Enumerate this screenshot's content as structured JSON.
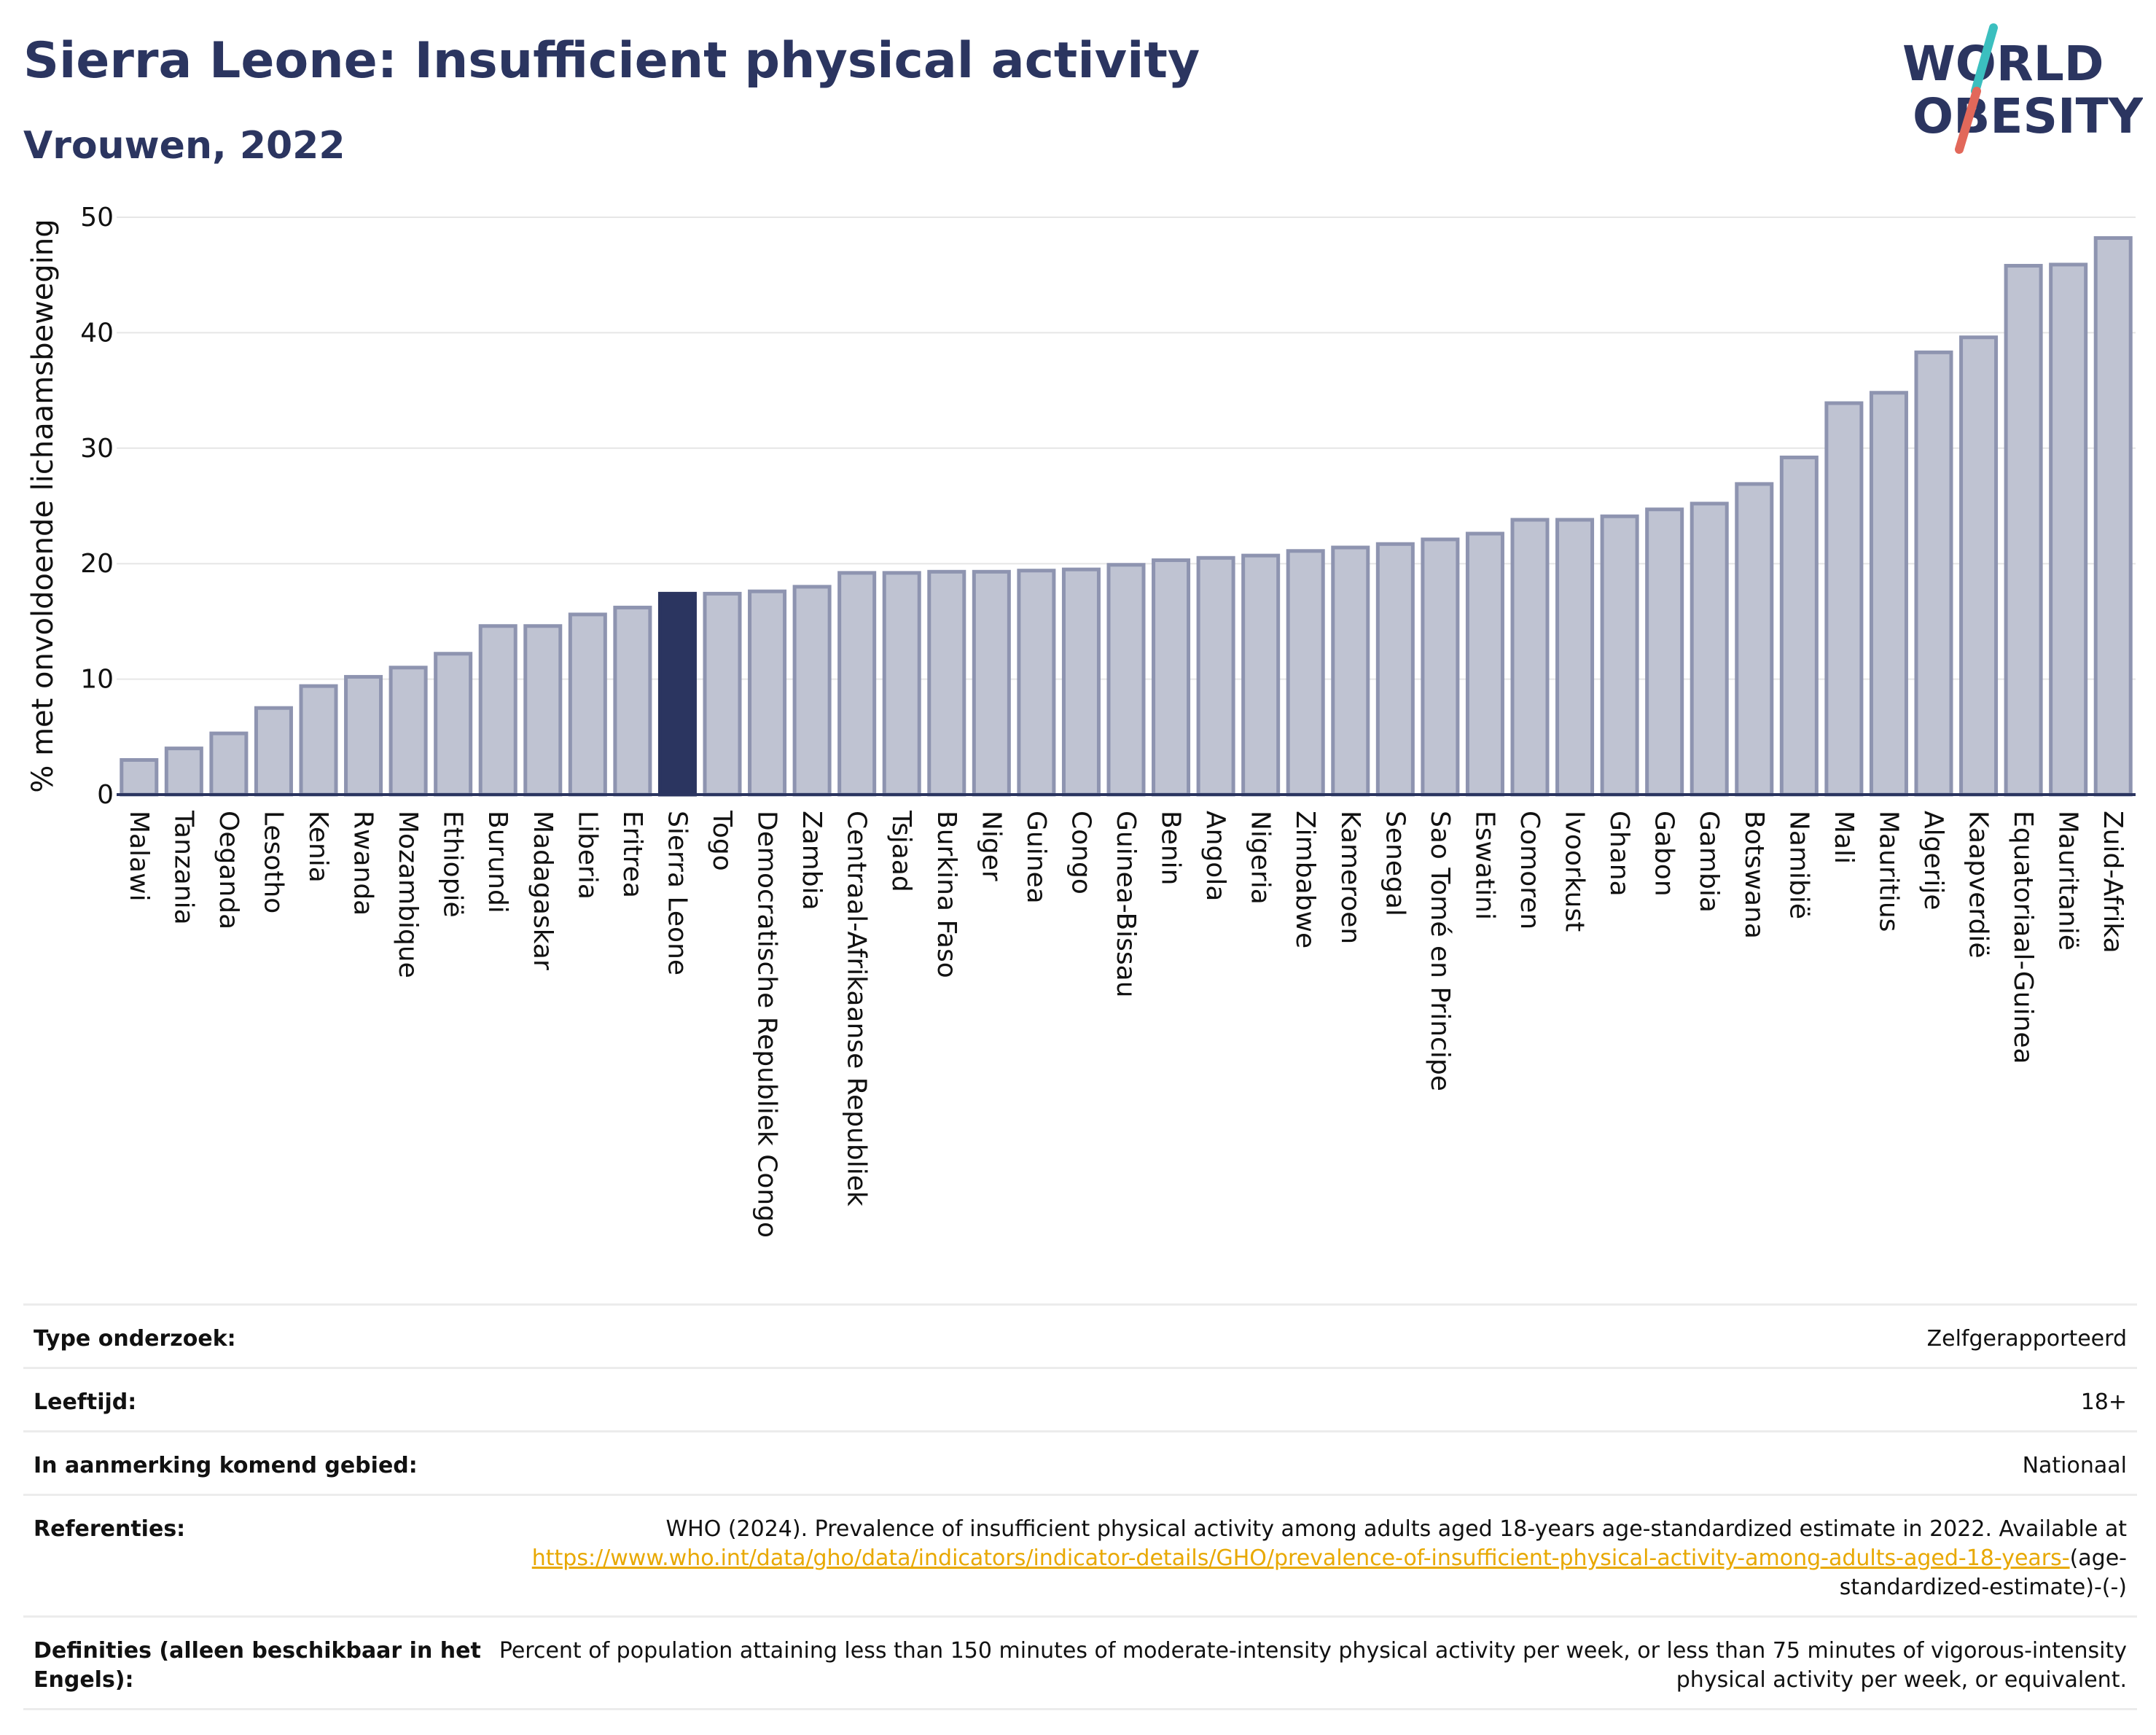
{
  "header": {
    "title": "Sierra Leone: Insufficient physical activity",
    "subtitle": "Vrouwen, 2022"
  },
  "logo": {
    "line1": "WORLD",
    "line2": "OBESITY",
    "colors": {
      "text": "#2b3560",
      "slash_teal": "#3bbfbf",
      "slash_red": "#e2685a"
    }
  },
  "chart_data": {
    "type": "bar",
    "title": "",
    "xlabel": "",
    "ylabel": "% met onvoldoende lichaamsbeweging",
    "ylim": [
      0,
      50
    ],
    "yticks": [
      0,
      10,
      20,
      30,
      40,
      50
    ],
    "grid": true,
    "highlight": "Sierra Leone",
    "colors": {
      "bar": "#bfc3d2",
      "bar_border": "#8e94b0",
      "highlight": "#2b3560",
      "grid": "#e6e6e6",
      "baseline": "#2b3560"
    },
    "categories": [
      "Malawi",
      "Tanzania",
      "Oeganda",
      "Lesotho",
      "Kenia",
      "Rwanda",
      "Mozambique",
      "Ethiopië",
      "Burundi",
      "Madagaskar",
      "Liberia",
      "Eritrea",
      "Sierra Leone",
      "Togo",
      "Democratische Republiek Congo",
      "Zambia",
      "Centraal-Afrikaanse Republiek",
      "Tsjaad",
      "Burkina Faso",
      "Niger",
      "Guinea",
      "Congo",
      "Guinea-Bissau",
      "Benin",
      "Angola",
      "Nigeria",
      "Zimbabwe",
      "Kameroen",
      "Senegal",
      "Sao Tomé en Principe",
      "Eswatini",
      "Comoren",
      "Ivoorkust",
      "Ghana",
      "Gabon",
      "Gambia",
      "Botswana",
      "Namibië",
      "Mali",
      "Mauritius",
      "Algerije",
      "Kaapverdië",
      "Equatoriaal-Guinea",
      "Mauritanië",
      "Zuid-Afrika"
    ],
    "values": [
      3.0,
      4.0,
      5.3,
      7.5,
      9.4,
      10.2,
      11.0,
      12.2,
      14.6,
      14.6,
      15.6,
      16.2,
      17.4,
      17.4,
      17.6,
      18.0,
      19.2,
      19.2,
      19.3,
      19.3,
      19.4,
      19.5,
      19.9,
      20.3,
      20.5,
      20.7,
      21.1,
      21.4,
      21.7,
      22.1,
      22.6,
      23.8,
      23.8,
      24.1,
      24.7,
      25.2,
      26.9,
      29.2,
      33.9,
      34.8,
      38.3,
      39.6,
      45.8,
      45.9,
      48.2
    ]
  },
  "info": {
    "rows": [
      {
        "label": "Type onderzoek:",
        "value": "Zelfgerapporteerd"
      },
      {
        "label": "Leeftijd:",
        "value": "18+"
      },
      {
        "label": "In aanmerking komend gebied:",
        "value": "Nationaal"
      }
    ],
    "references": {
      "label": "Referenties:",
      "text": "WHO (2024). Prevalence of insufficient physical activity among adults aged 18-years age-standardized estimate in 2022. Available at",
      "link": "https://www.who.int/data/gho/data/indicators/indicator-details/GHO/prevalence-of-insufficient-physical-activity-among-adults-aged-18-years-",
      "suffix": "(age-standardized-estimate)-(-)"
    },
    "definitions": {
      "label": "Definities (alleen beschikbaar in het Engels):",
      "value": "Percent of population attaining less than 150 minutes of moderate-intensity physical activity per week, or less than 75 minutes of vigorous-intensity physical activity per week, or equivalent."
    }
  }
}
